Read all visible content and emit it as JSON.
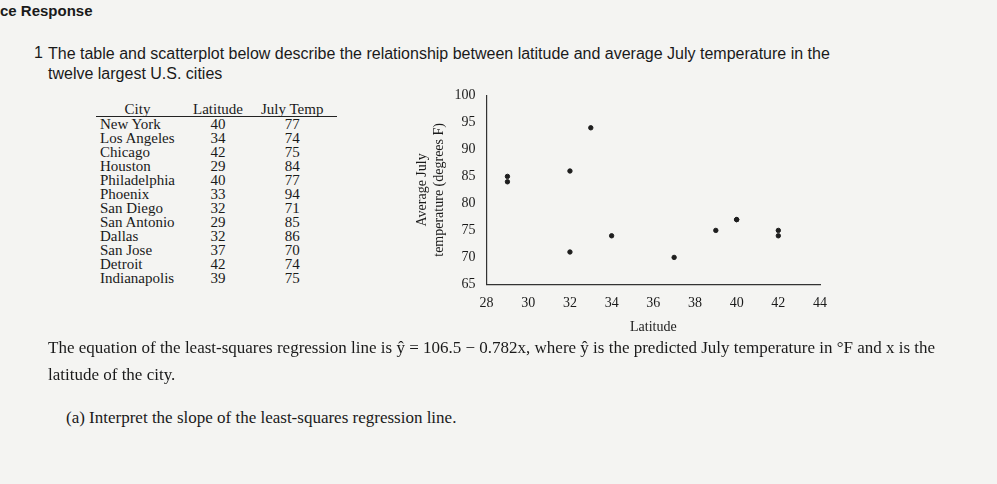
{
  "header": "ce Response",
  "problem_number": "1",
  "intro": "The table and scatterplot below describe the relationship between latitude and average July temperature in the twelve largest U.S. cities",
  "table": {
    "columns": [
      "City",
      "Latitude",
      "July Temp"
    ],
    "rows": [
      [
        "New York",
        40,
        77
      ],
      [
        "Los Angeles",
        34,
        74
      ],
      [
        "Chicago",
        42,
        75
      ],
      [
        "Houston",
        29,
        84
      ],
      [
        "Philadelphia",
        40,
        77
      ],
      [
        "Phoenix",
        33,
        94
      ],
      [
        "San Diego",
        32,
        71
      ],
      [
        "San Antonio",
        29,
        85
      ],
      [
        "Dallas",
        32,
        86
      ],
      [
        "San Jose",
        37,
        70
      ],
      [
        "Detroit",
        42,
        74
      ],
      [
        "Indianapolis",
        39,
        75
      ]
    ]
  },
  "chart_data": {
    "type": "scatter",
    "x_label": "Latitude",
    "y_label": [
      "Average July",
      "temperature (degrees F)"
    ],
    "x": [
      40,
      34,
      42,
      29,
      40,
      33,
      32,
      29,
      32,
      37,
      42,
      39
    ],
    "values": [
      77,
      74,
      75,
      84,
      77,
      94,
      71,
      85,
      86,
      70,
      74,
      75
    ],
    "color": "#1e1e1e",
    "marker": "circle",
    "xlim": [
      28,
      44
    ],
    "xticks": [
      28,
      30,
      32,
      34,
      36,
      38,
      40,
      42,
      44
    ],
    "ylim": [
      65,
      100
    ],
    "yticks": [
      65,
      70,
      75,
      80,
      85,
      90,
      95,
      100
    ],
    "grid": false
  },
  "equation_text": "The equation of the least-squares regression line is ŷ = 106.5 − 0.782x, where ŷ is the predicted July temperature in °F and x is the latitude of the city.",
  "part_a": "(a) Interpret the slope of the least-squares regression line."
}
